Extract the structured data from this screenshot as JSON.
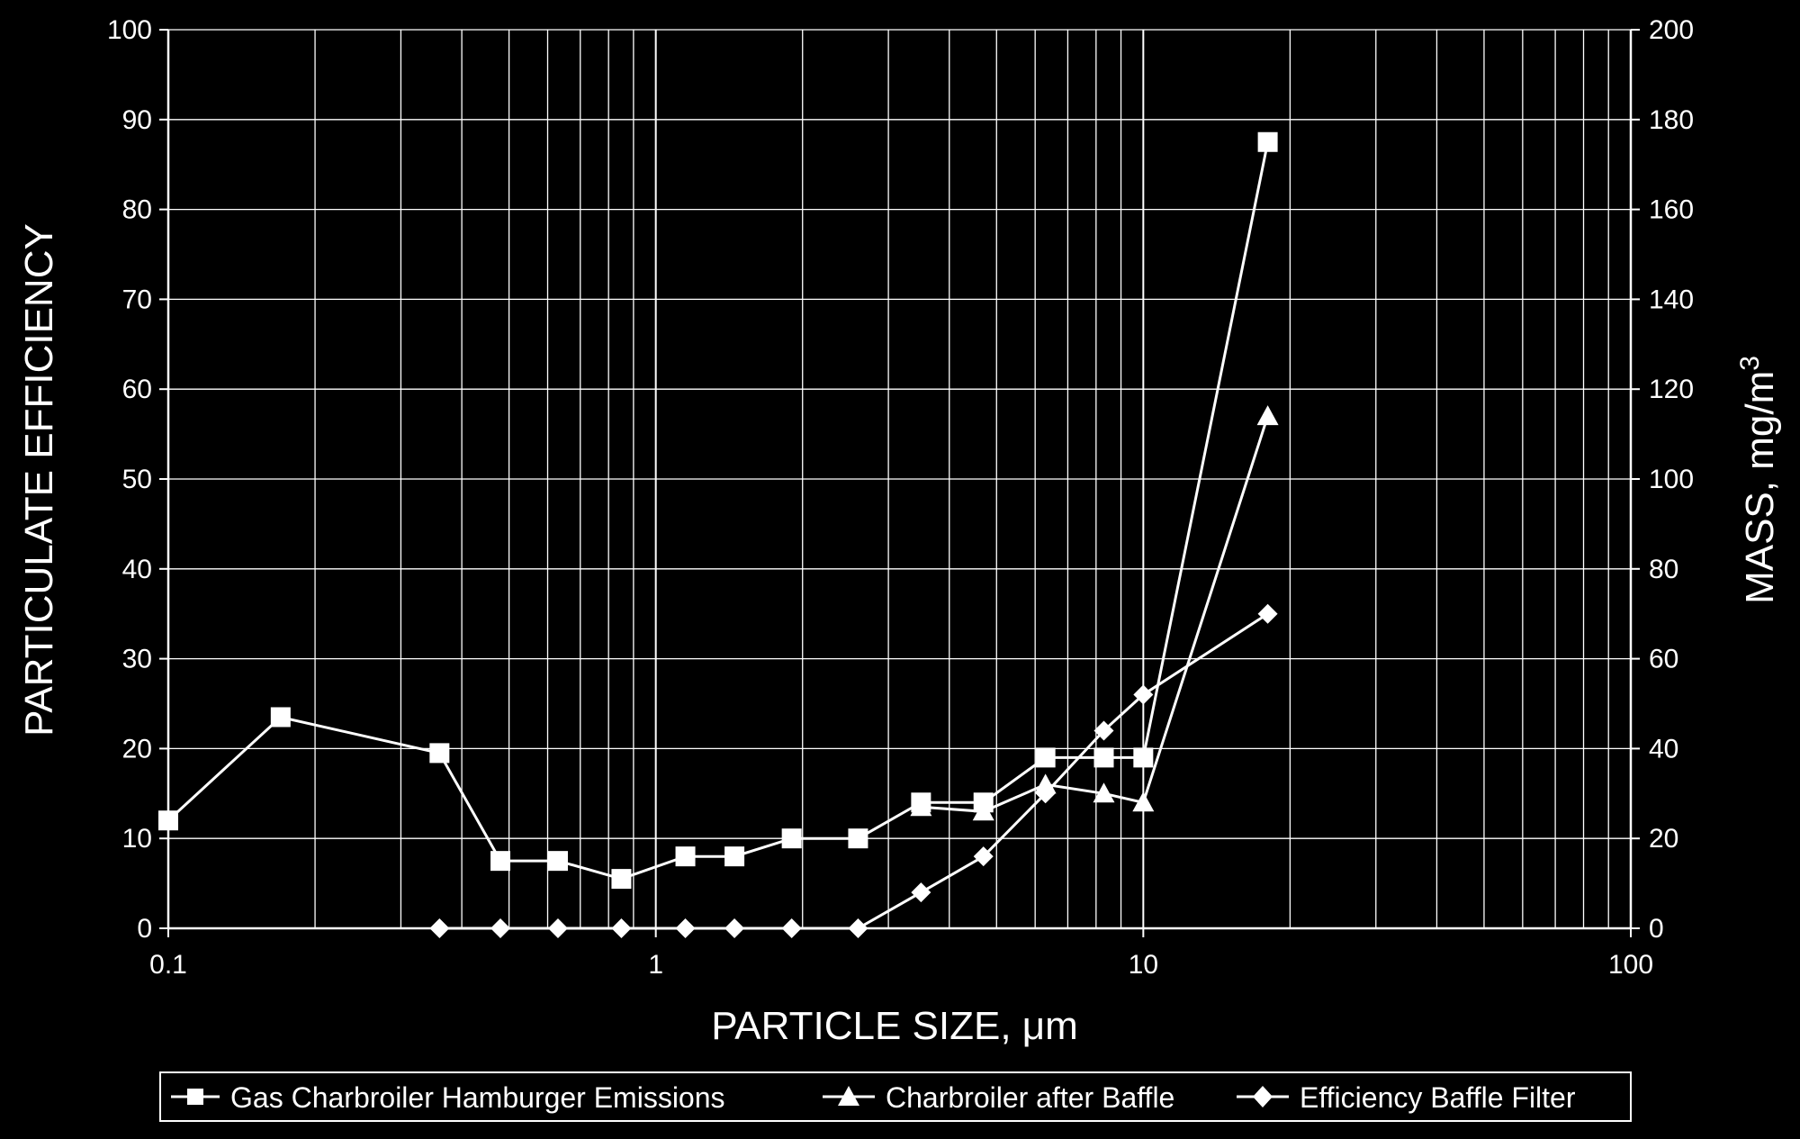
{
  "chart_data": {
    "type": "line",
    "xlabel": "PARTICLE SIZE, μm",
    "ylabel": "PARTICULATE EFFICIENCY",
    "y2label_main": "MASS, mg/m",
    "y2label_sup": "3",
    "x_scale": "log",
    "xlim": [
      0.1,
      100
    ],
    "ylim": [
      0,
      100
    ],
    "y2lim": [
      0,
      200
    ],
    "grid": true,
    "legend_position": "bottom",
    "x_tick_labels": [
      "0.1",
      "1",
      "10",
      "100"
    ],
    "x_tick_values": [
      0.1,
      1,
      10,
      100
    ],
    "y_tick_labels": [
      "0",
      "10",
      "20",
      "30",
      "40",
      "50",
      "60",
      "70",
      "80",
      "90",
      "100"
    ],
    "y2_tick_labels": [
      "0",
      "20",
      "40",
      "60",
      "80",
      "100",
      "120",
      "140",
      "160",
      "180",
      "200"
    ],
    "series": [
      {
        "name": "Gas Charbroiler Hamburger Emissions",
        "marker": "square",
        "axis": "right",
        "x": [
          0.1,
          0.17,
          0.36,
          0.48,
          0.63,
          0.85,
          1.15,
          1.45,
          1.9,
          2.6,
          3.5,
          4.7,
          6.3,
          8.3,
          10,
          18
        ],
        "y": [
          24,
          47,
          39,
          15,
          15,
          11,
          16,
          16,
          20,
          20,
          28,
          28,
          38,
          38,
          38,
          175
        ]
      },
      {
        "name": "Charbroiler after Baffle",
        "marker": "triangle",
        "axis": "right",
        "x": [
          3.5,
          4.7,
          6.3,
          8.3,
          10,
          18
        ],
        "y": [
          27,
          26,
          32,
          30,
          28,
          114
        ]
      },
      {
        "name": "Efficiency Baffle Filter",
        "marker": "diamond",
        "axis": "left",
        "x": [
          0.36,
          0.48,
          0.63,
          0.85,
          1.15,
          1.45,
          1.9,
          2.6,
          3.5,
          4.7,
          6.3,
          8.3,
          10,
          18
        ],
        "y": [
          0,
          0,
          0,
          0,
          0,
          0,
          0,
          0,
          4,
          8,
          15,
          22,
          26,
          35
        ]
      }
    ]
  }
}
